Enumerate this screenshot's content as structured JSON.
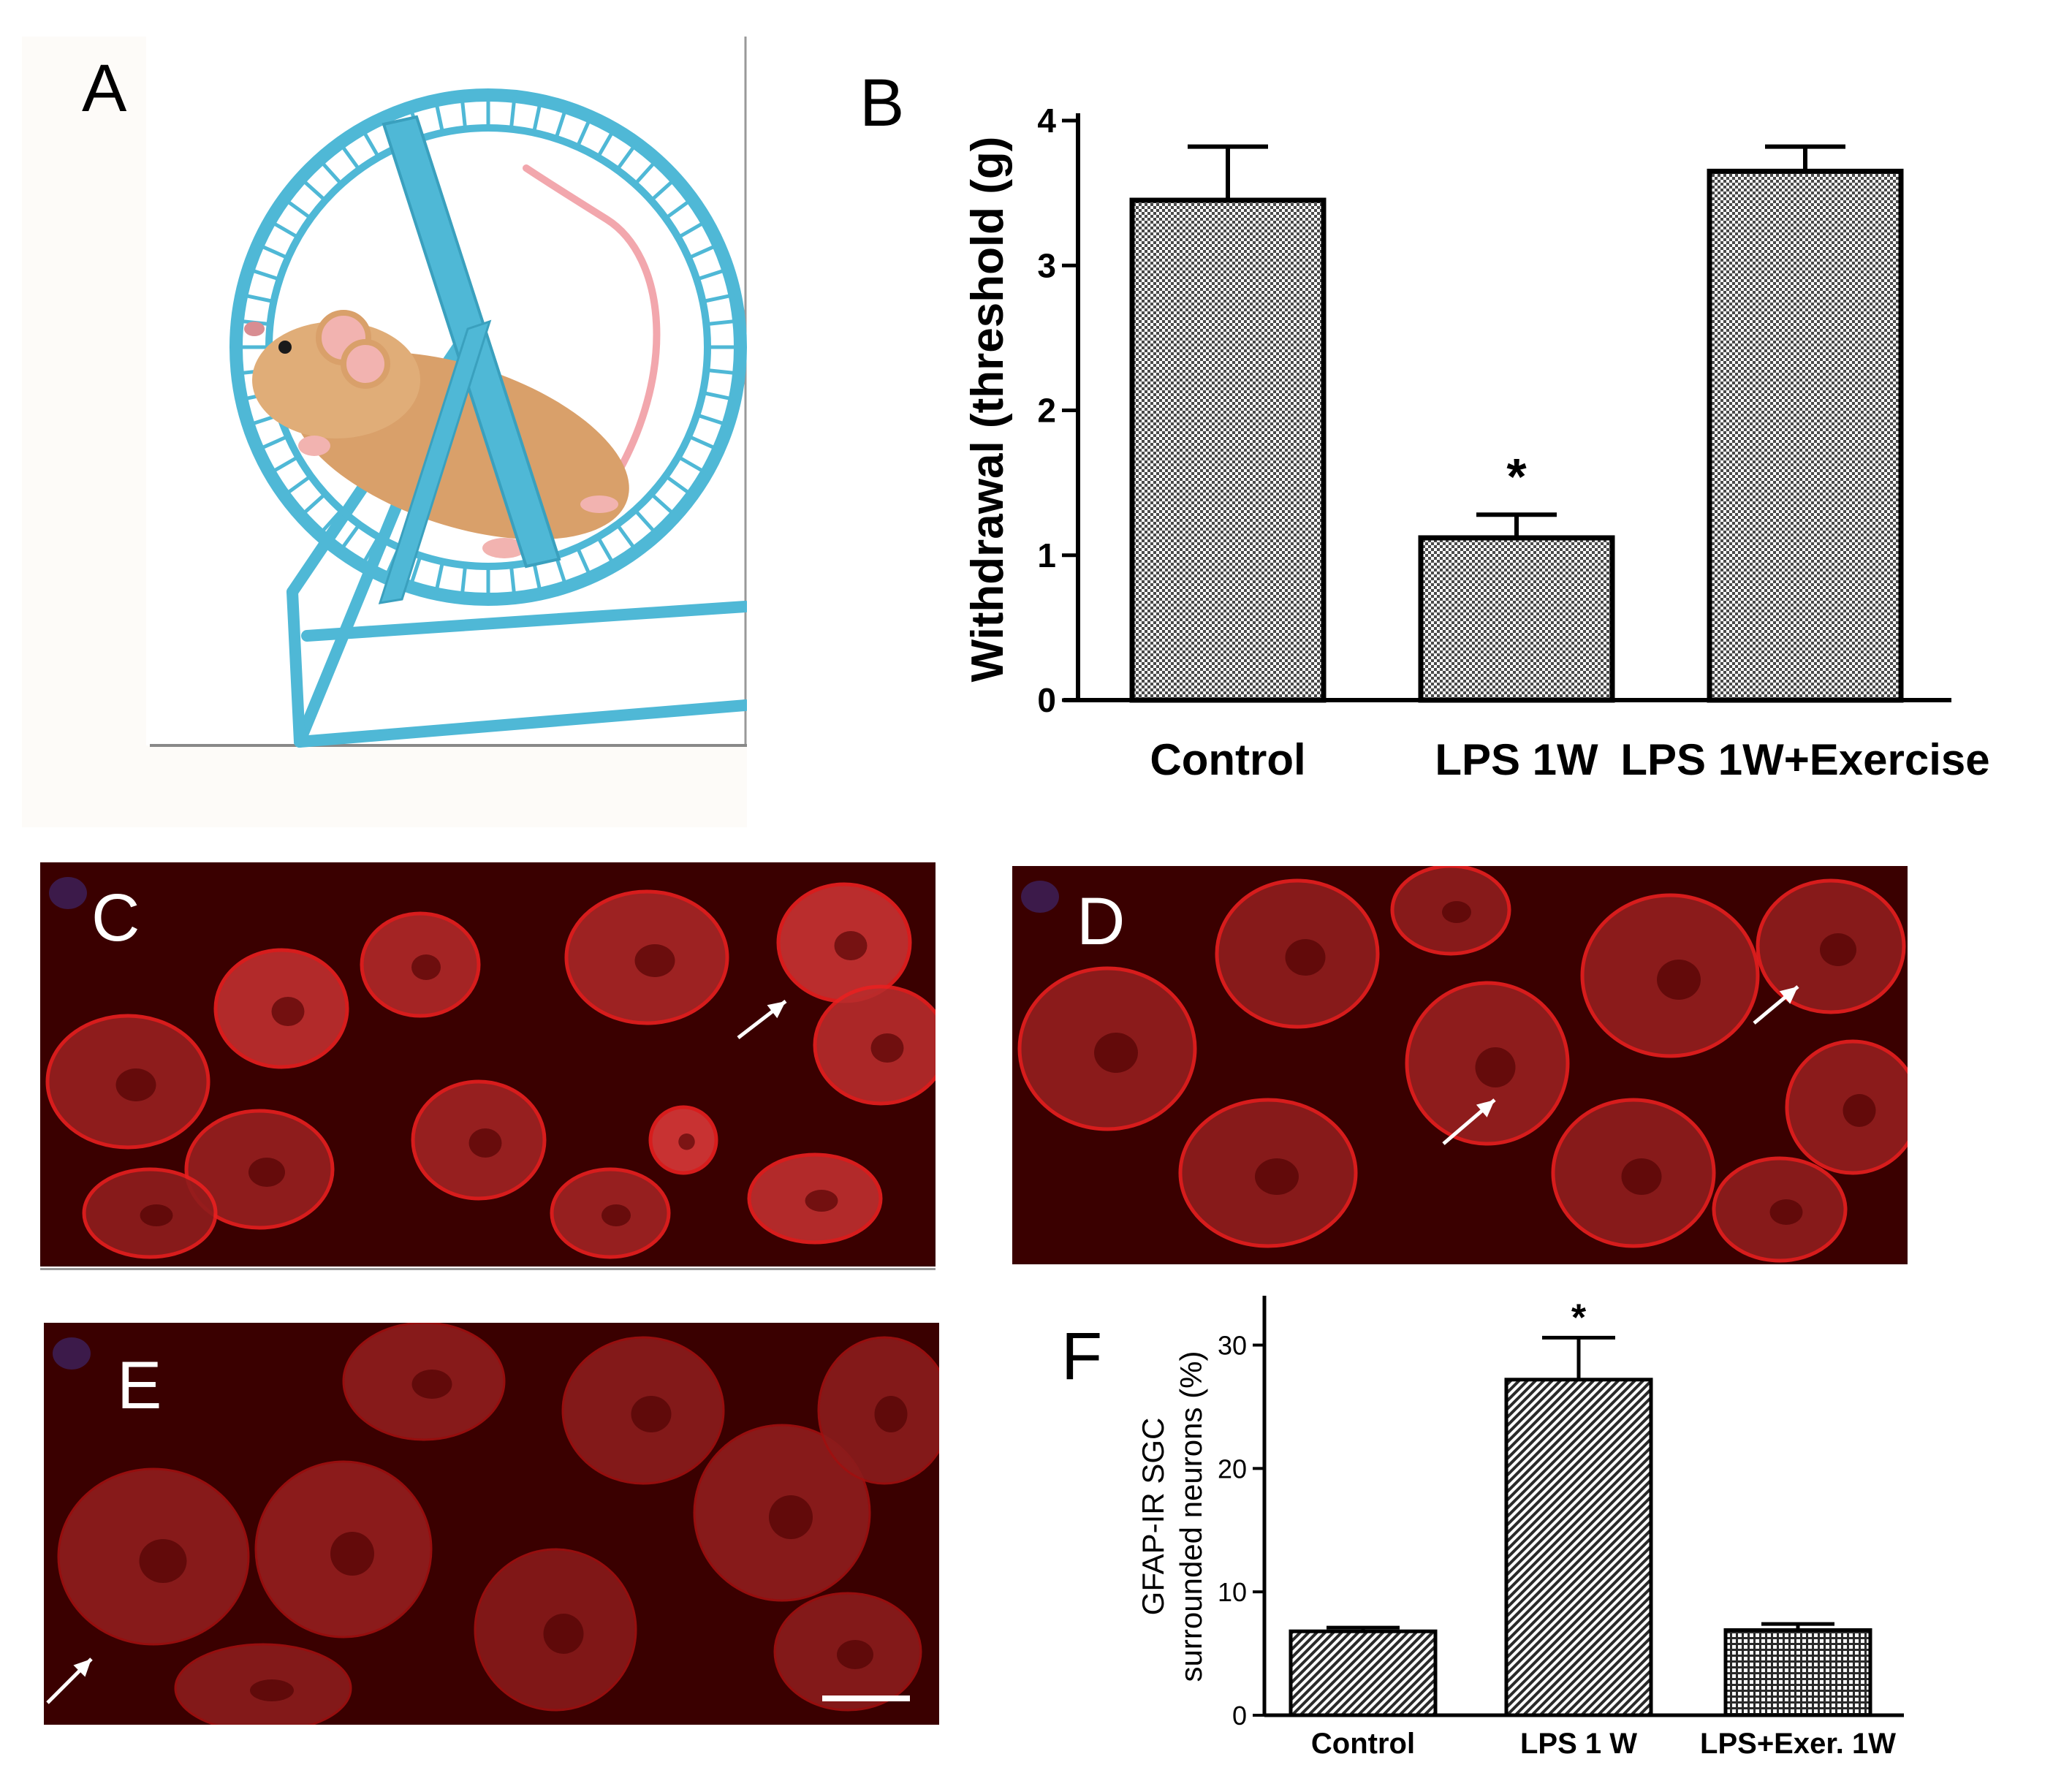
{
  "panels": {
    "a": {
      "letter": "A"
    },
    "b": {
      "letter": "B"
    },
    "c": {
      "letter": "C"
    },
    "d": {
      "letter": "D"
    },
    "e": {
      "letter": "E"
    },
    "f": {
      "letter": "F"
    }
  },
  "colors": {
    "wheel": "#4fb8d6",
    "mouse_fur": "#d9a06a",
    "tail": "#f2a7ad",
    "micro_bg": "#3a0000",
    "micro_stain": "#e01010",
    "arrow": "#ffffff",
    "bar_fill_pattern": "#9a9a9a"
  },
  "chart_data": [
    {
      "panel": "B",
      "type": "bar",
      "categories": [
        "Control",
        "LPS 1W",
        "LPS 1W+Exercise"
      ],
      "values": [
        3.45,
        1.12,
        3.65
      ],
      "errors": [
        0.37,
        0.16,
        0.17
      ],
      "significance": [
        "",
        "*",
        ""
      ],
      "ylabel": "Withdrawal (threshold (g)",
      "ylim": [
        0,
        4
      ],
      "yticks": [
        "0",
        "1",
        "2",
        "3",
        "4"
      ],
      "grid": false,
      "pattern": "checker"
    },
    {
      "panel": "F",
      "type": "bar",
      "categories": [
        "Control",
        "LPS 1 W",
        "LPS+Exer. 1W"
      ],
      "values": [
        6.8,
        27.2,
        6.9
      ],
      "errors": [
        0.3,
        3.4,
        0.5
      ],
      "significance": [
        "",
        "*",
        ""
      ],
      "ylabel_lines": [
        "GFAP-IR SGC",
        "surrounded neurons (%)"
      ],
      "ylim": [
        0,
        34
      ],
      "yticks": [
        0,
        10,
        20,
        30
      ],
      "yticklabels": [
        "0",
        "10",
        "20",
        "30"
      ],
      "grid": false,
      "patterns": [
        "diag",
        "diag",
        "grid"
      ]
    }
  ]
}
